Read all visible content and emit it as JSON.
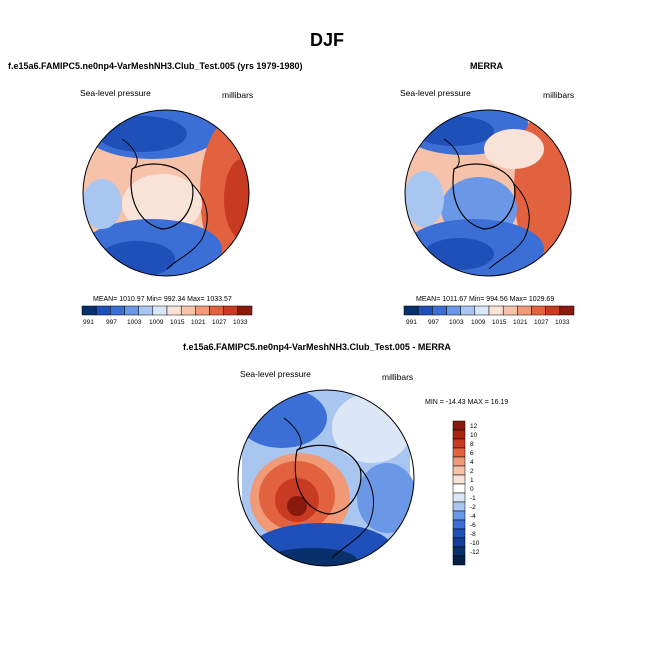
{
  "title": "DJF",
  "colors": {
    "c1": "#08306b",
    "c2": "#1f4fb8",
    "c3": "#3b6fd6",
    "c4": "#6a98e6",
    "c5": "#a9c6f0",
    "c6": "#dbe7f7",
    "c7": "#f9e3d8",
    "c8": "#f6c2aa",
    "c9": "#f09a78",
    "c10": "#e2623f",
    "c11": "#c93a22",
    "c12": "#8b1a0e"
  },
  "panels": {
    "model": {
      "title": "f.e15a6.FAMIPC5.ne0np4-VarMeshNH3.Club_Test.005 (yrs 1979-1980)",
      "variable": "Sea-level pressure",
      "units": "millibars",
      "stats": "MEAN= 1010.97  Min= 992.34  Max= 1033.57",
      "colorbar_ticks": [
        "991",
        "997",
        "1003",
        "1009",
        "1015",
        "1021",
        "1027",
        "1033"
      ]
    },
    "obs": {
      "title": "MERRA",
      "variable": "Sea-level pressure",
      "units": "millibars",
      "stats": "MEAN= 1011.67  Min= 994.56  Max= 1029.69",
      "colorbar_ticks": [
        "991",
        "997",
        "1003",
        "1009",
        "1015",
        "1021",
        "1027",
        "1033"
      ]
    },
    "diff": {
      "title": "f.e15a6.FAMIPC5.ne0np4-VarMeshNH3.Club_Test.005 - MERRA",
      "variable": "Sea-level pressure",
      "units": "millibars",
      "stats": "MIN = -14.43  MAX =  16.19",
      "colorbar_ticks": [
        "12",
        "10",
        "8",
        "6",
        "4",
        "2",
        "1",
        "0",
        "-1",
        "-2",
        "-4",
        "-6",
        "-8",
        "-10",
        "-12"
      ]
    }
  }
}
